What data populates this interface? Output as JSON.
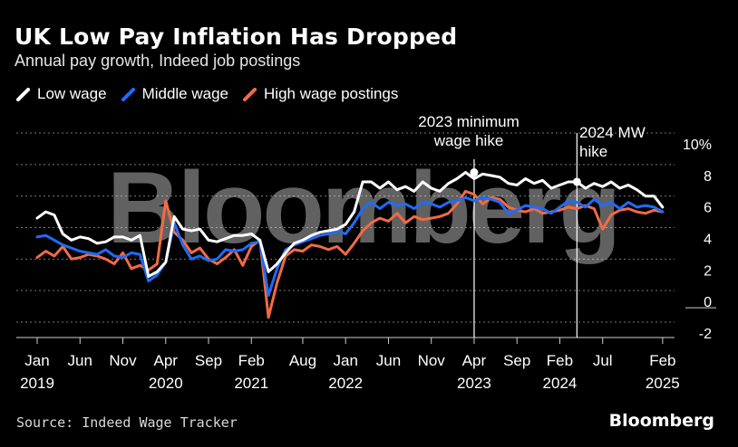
{
  "header": {
    "title": "UK Low Pay Inflation Has Dropped",
    "subtitle": "Annual pay growth, Indeed job postings"
  },
  "footer": {
    "source": "Source: Indeed Wage Tracker",
    "brand": "Bloomberg"
  },
  "watermark": "Bloomberg",
  "colors": {
    "background": "#000000",
    "low": "#ffffff",
    "middle": "#1f6cf6",
    "high": "#f26b43",
    "grid": "#777777"
  },
  "chart_data": {
    "type": "line",
    "title": "UK Low Pay Inflation Has Dropped",
    "subtitle": "Annual pay growth, Indeed job postings",
    "ylabel": "%",
    "ylim": [
      -3,
      10
    ],
    "y_ticks": [
      "10%",
      "8",
      "6",
      "4",
      "2",
      "0",
      "-2"
    ],
    "y_tick_values": [
      10,
      8,
      6,
      4,
      2,
      0,
      -2
    ],
    "x_start": "2019-01",
    "x_ticks": [
      {
        "month": 0,
        "label": "Jan",
        "year": "2019"
      },
      {
        "month": 5,
        "label": "Jun",
        "year": ""
      },
      {
        "month": 10,
        "label": "Nov",
        "year": ""
      },
      {
        "month": 15,
        "label": "Apr",
        "year": "2020"
      },
      {
        "month": 20,
        "label": "Sep",
        "year": ""
      },
      {
        "month": 25,
        "label": "Feb",
        "year": "2021"
      },
      {
        "month": 31,
        "label": "Aug",
        "year": ""
      },
      {
        "month": 36,
        "label": "Jan",
        "year": "2022"
      },
      {
        "month": 41,
        "label": "Jun",
        "year": ""
      },
      {
        "month": 46,
        "label": "Nov",
        "year": ""
      },
      {
        "month": 51,
        "label": "Apr",
        "year": "2023"
      },
      {
        "month": 56,
        "label": "Sep",
        "year": ""
      },
      {
        "month": 61,
        "label": "Feb",
        "year": "2024"
      },
      {
        "month": 66,
        "label": "Jul",
        "year": ""
      },
      {
        "month": 73,
        "label": "Feb",
        "year": "2025"
      }
    ],
    "legend": [
      {
        "key": "low",
        "label": "Low wage"
      },
      {
        "key": "middle",
        "label": "Middle wage"
      },
      {
        "key": "high",
        "label": "High wage postings"
      }
    ],
    "annotations": [
      {
        "month": 51,
        "value": 7.5,
        "lines": [
          "2023 minimum",
          "wage hike"
        ]
      },
      {
        "month": 63,
        "value": 6.9,
        "lines": [
          "2024 MW",
          "hike"
        ]
      }
    ],
    "series": [
      {
        "name": "Low wage",
        "key": "low",
        "values": [
          4.6,
          5.0,
          4.8,
          3.6,
          3.2,
          3.4,
          3.3,
          3.0,
          3.1,
          3.4,
          3.4,
          3.2,
          3.5,
          0.9,
          1.2,
          1.8,
          4.7,
          3.9,
          3.8,
          3.9,
          3.2,
          3.1,
          3.3,
          3.5,
          3.5,
          3.6,
          3.2,
          1.2,
          1.7,
          2.4,
          3.0,
          3.2,
          3.5,
          3.7,
          3.8,
          3.9,
          4.2,
          5.0,
          6.9,
          6.9,
          6.5,
          6.9,
          6.4,
          6.6,
          6.3,
          6.9,
          6.5,
          6.3,
          6.8,
          7.1,
          7.5,
          7.1,
          7.4,
          7.3,
          7.2,
          6.8,
          6.7,
          7.1,
          6.8,
          7.0,
          6.5,
          6.7,
          6.9,
          6.9,
          6.5,
          6.8,
          6.6,
          6.9,
          6.5,
          6.7,
          6.4,
          6.0,
          6.0,
          5.3
        ]
      },
      {
        "name": "Middle wage",
        "key": "middle",
        "values": [
          3.4,
          3.5,
          3.2,
          2.9,
          2.7,
          2.5,
          2.4,
          2.3,
          2.6,
          2.2,
          2.1,
          2.4,
          2.3,
          0.6,
          1.0,
          1.8,
          4.3,
          2.9,
          2.0,
          2.2,
          1.9,
          2.0,
          2.6,
          2.5,
          2.6,
          3.0,
          3.1,
          -0.3,
          1.4,
          2.6,
          2.9,
          3.1,
          3.3,
          3.5,
          3.6,
          3.8,
          3.6,
          4.3,
          5.2,
          5.6,
          5.2,
          5.6,
          5.4,
          5.5,
          5.2,
          5.6,
          5.5,
          5.3,
          5.6,
          5.7,
          5.9,
          5.7,
          5.9,
          5.8,
          5.6,
          4.9,
          5.1,
          5.4,
          5.3,
          5.2,
          4.9,
          5.3,
          5.7,
          5.6,
          5.3,
          5.8,
          5.4,
          5.6,
          5.2,
          5.6,
          5.3,
          5.4,
          5.3,
          5.0
        ]
      },
      {
        "name": "High wage postings",
        "key": "high",
        "values": [
          2.1,
          2.5,
          2.2,
          2.8,
          2.0,
          2.1,
          2.3,
          2.2,
          2.0,
          1.7,
          2.4,
          1.4,
          1.6,
          1.3,
          1.7,
          5.7,
          3.7,
          3.2,
          2.4,
          2.7,
          2.0,
          1.7,
          2.1,
          2.6,
          1.6,
          2.8,
          3.2,
          -1.7,
          0.5,
          2.2,
          2.6,
          2.5,
          2.9,
          2.8,
          2.6,
          2.8,
          2.3,
          3.0,
          3.8,
          4.3,
          4.6,
          4.4,
          4.9,
          4.3,
          4.7,
          4.5,
          4.6,
          4.7,
          4.9,
          5.5,
          6.3,
          6.1,
          5.5,
          5.9,
          5.8,
          5.3,
          5.1,
          5.0,
          5.2,
          4.9,
          5.0,
          5.1,
          5.3,
          5.2,
          5.4,
          5.2,
          3.9,
          4.8,
          5.1,
          5.2,
          5.0,
          4.9,
          5.1,
          5.0
        ]
      }
    ]
  }
}
